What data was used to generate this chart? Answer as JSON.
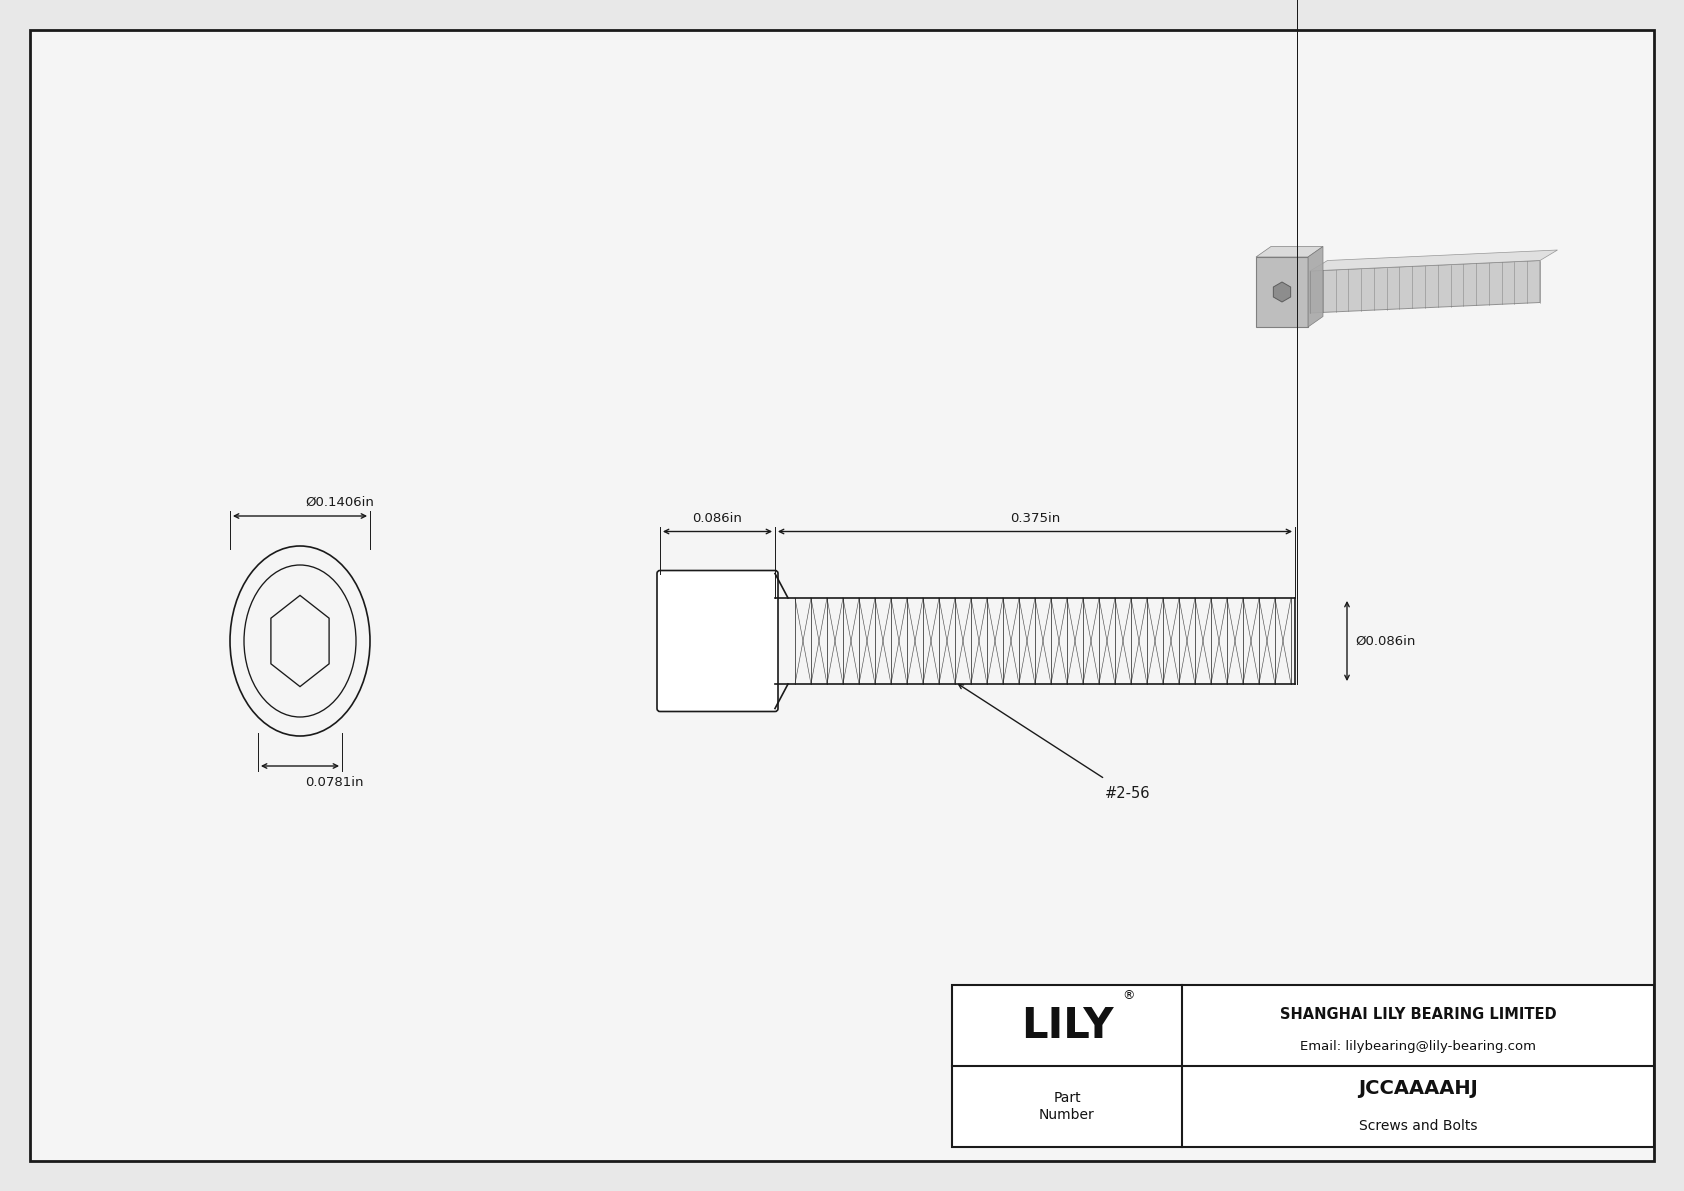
{
  "bg_color": "#e8e8e8",
  "drawing_bg": "#f5f5f5",
  "line_color": "#1a1a1a",
  "title": "JCCAAAAHJ",
  "subtitle": "Screws and Bolts",
  "company": "SHANGHAI LILY BEARING LIMITED",
  "email": "Email: lilybearing@lily-bearing.com",
  "logo": "LILY",
  "part_label": "Part\nNumber",
  "dim_head_width": "Ø0.1406in",
  "dim_socket_width": "0.0781in",
  "dim_head_length": "0.086in",
  "dim_thread_length": "0.375in",
  "dim_thread_dia": "Ø0.086in",
  "thread_label": "#2-56"
}
